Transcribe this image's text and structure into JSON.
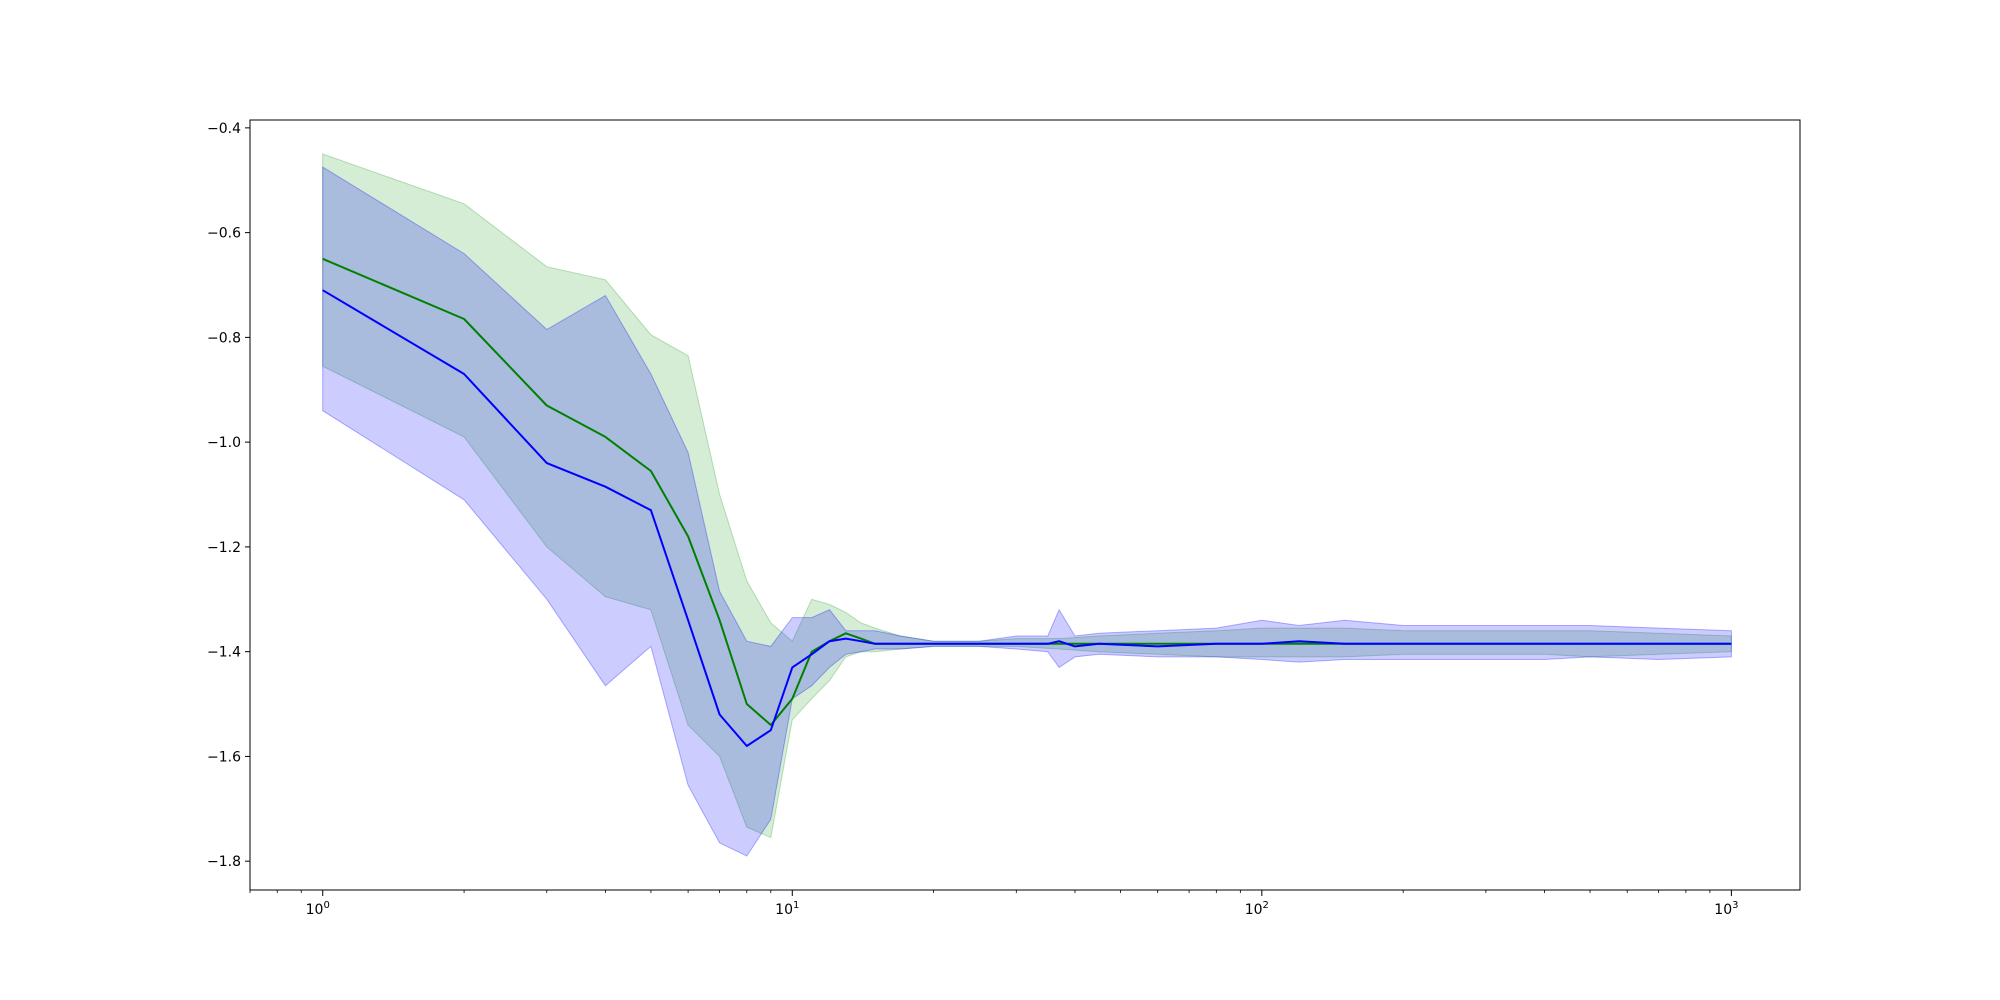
{
  "chart_data": {
    "type": "line",
    "title": "",
    "xlabel": "",
    "ylabel": "",
    "x_scale": "log",
    "xlim": [
      0.7,
      1400
    ],
    "ylim": [
      -1.855,
      -0.385
    ],
    "grid": false,
    "legend": "none",
    "x_ticks": [
      {
        "value": 1,
        "base": "10",
        "exp": "0"
      },
      {
        "value": 10,
        "base": "10",
        "exp": "1"
      },
      {
        "value": 100,
        "base": "10",
        "exp": "2"
      },
      {
        "value": 1000,
        "base": "10",
        "exp": "3"
      }
    ],
    "y_ticks": [
      {
        "value": -0.4,
        "label": "−0.4"
      },
      {
        "value": -0.6,
        "label": "−0.6"
      },
      {
        "value": -0.8,
        "label": "−0.8"
      },
      {
        "value": -1.0,
        "label": "−1.0"
      },
      {
        "value": -1.2,
        "label": "−1.2"
      },
      {
        "value": -1.4,
        "label": "−1.4"
      },
      {
        "value": -1.6,
        "label": "−1.6"
      },
      {
        "value": -1.8,
        "label": "−1.8"
      }
    ],
    "series": [
      {
        "color": "#008000",
        "band_color": "#2ca02c",
        "x": [
          1,
          2,
          3,
          4,
          5,
          6,
          7,
          8,
          9,
          10,
          11,
          12,
          13,
          14,
          15,
          17,
          20,
          25,
          30,
          37,
          45,
          60,
          80,
          100,
          150,
          200,
          300,
          400,
          500,
          700,
          1000
        ],
        "mean": [
          -0.65,
          -0.765,
          -0.93,
          -0.99,
          -1.055,
          -1.18,
          -1.34,
          -1.5,
          -1.54,
          -1.49,
          -1.4,
          -1.38,
          -1.365,
          -1.375,
          -1.385,
          -1.385,
          -1.385,
          -1.385,
          -1.385,
          -1.385,
          -1.385,
          -1.385,
          -1.385,
          -1.385,
          -1.385,
          -1.385,
          -1.385,
          -1.385,
          -1.385,
          -1.385,
          -1.385
        ],
        "upper": [
          -0.45,
          -0.545,
          -0.665,
          -0.69,
          -0.795,
          -0.835,
          -1.1,
          -1.265,
          -1.345,
          -1.38,
          -1.3,
          -1.31,
          -1.325,
          -1.345,
          -1.355,
          -1.37,
          -1.38,
          -1.38,
          -1.375,
          -1.375,
          -1.37,
          -1.365,
          -1.36,
          -1.355,
          -1.355,
          -1.36,
          -1.36,
          -1.36,
          -1.36,
          -1.365,
          -1.37
        ],
        "lower": [
          -0.855,
          -0.99,
          -1.2,
          -1.295,
          -1.32,
          -1.54,
          -1.6,
          -1.735,
          -1.755,
          -1.53,
          -1.49,
          -1.455,
          -1.41,
          -1.4,
          -1.4,
          -1.395,
          -1.39,
          -1.39,
          -1.39,
          -1.395,
          -1.4,
          -1.405,
          -1.41,
          -1.41,
          -1.41,
          -1.405,
          -1.405,
          -1.405,
          -1.41,
          -1.405,
          -1.4
        ]
      },
      {
        "color": "#0000ff",
        "band_color": "#0000ff",
        "x": [
          1,
          2,
          3,
          4,
          5,
          6,
          7,
          8,
          9,
          10,
          11,
          12,
          13,
          14,
          15,
          17,
          20,
          25,
          30,
          35,
          37,
          40,
          45,
          60,
          80,
          100,
          120,
          150,
          200,
          300,
          400,
          500,
          700,
          1000
        ],
        "mean": [
          -0.71,
          -0.87,
          -1.04,
          -1.085,
          -1.13,
          -1.34,
          -1.52,
          -1.58,
          -1.55,
          -1.43,
          -1.405,
          -1.38,
          -1.375,
          -1.38,
          -1.385,
          -1.385,
          -1.385,
          -1.385,
          -1.385,
          -1.385,
          -1.38,
          -1.39,
          -1.385,
          -1.39,
          -1.385,
          -1.385,
          -1.38,
          -1.385,
          -1.385,
          -1.385,
          -1.385,
          -1.385,
          -1.385,
          -1.385
        ],
        "upper": [
          -0.475,
          -0.64,
          -0.785,
          -0.72,
          -0.87,
          -1.02,
          -1.285,
          -1.38,
          -1.39,
          -1.335,
          -1.335,
          -1.32,
          -1.36,
          -1.36,
          -1.36,
          -1.37,
          -1.38,
          -1.38,
          -1.37,
          -1.37,
          -1.32,
          -1.37,
          -1.365,
          -1.36,
          -1.355,
          -1.34,
          -1.35,
          -1.34,
          -1.35,
          -1.35,
          -1.35,
          -1.35,
          -1.355,
          -1.36
        ],
        "lower": [
          -0.94,
          -1.11,
          -1.3,
          -1.465,
          -1.39,
          -1.655,
          -1.765,
          -1.79,
          -1.72,
          -1.49,
          -1.465,
          -1.43,
          -1.405,
          -1.4,
          -1.395,
          -1.395,
          -1.39,
          -1.39,
          -1.395,
          -1.4,
          -1.43,
          -1.41,
          -1.405,
          -1.41,
          -1.41,
          -1.415,
          -1.42,
          -1.415,
          -1.415,
          -1.415,
          -1.415,
          -1.41,
          -1.415,
          -1.41
        ]
      }
    ]
  }
}
